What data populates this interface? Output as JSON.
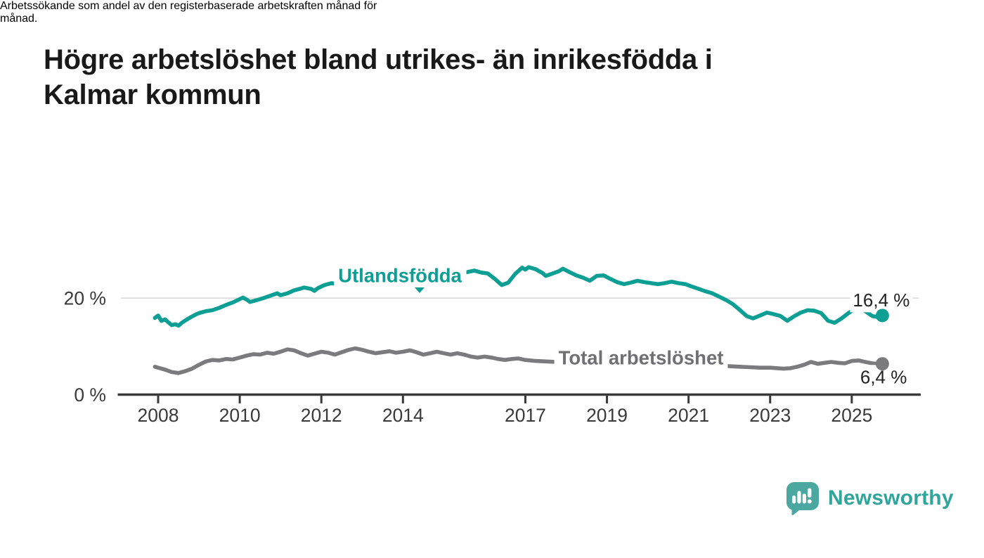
{
  "header": {
    "title_lines": [
      "Högre arbetslöshet bland utrikes- än inrikesfödda i",
      "Kalmar kommun"
    ],
    "subtitle_lines": [
      "Arbetssökande som andel av den registerbaserade arbetskraften månad för",
      "månad."
    ]
  },
  "chart_data": {
    "type": "line",
    "unit": "percent of registered labour force",
    "grid": "y-gridline-at-20-only",
    "legend_position": "inline-labels-on-lines",
    "x_axis": {
      "ticks": [
        2008,
        2010,
        2012,
        2014,
        2017,
        2019,
        2021,
        2023,
        2025
      ],
      "range": [
        2007.9,
        2025.8
      ]
    },
    "y_axis": {
      "ticks": [
        {
          "value": 0,
          "label": "0 %"
        },
        {
          "value": 20,
          "label": "20 %"
        }
      ],
      "range": [
        0,
        29
      ]
    },
    "series": [
      {
        "name": "Utlandsfödda",
        "color": "#0D9F94",
        "end_label": "16,4 %",
        "end_value": 16.4,
        "points": [
          [
            2007.92,
            15.9
          ],
          [
            2008.0,
            16.4
          ],
          [
            2008.08,
            15.3
          ],
          [
            2008.17,
            15.6
          ],
          [
            2008.25,
            15.0
          ],
          [
            2008.33,
            14.4
          ],
          [
            2008.42,
            14.6
          ],
          [
            2008.5,
            14.3
          ],
          [
            2008.58,
            14.9
          ],
          [
            2008.67,
            15.4
          ],
          [
            2008.75,
            15.8
          ],
          [
            2008.83,
            16.2
          ],
          [
            2008.92,
            16.6
          ],
          [
            2009.0,
            16.9
          ],
          [
            2009.17,
            17.3
          ],
          [
            2009.33,
            17.5
          ],
          [
            2009.5,
            18.0
          ],
          [
            2009.67,
            18.6
          ],
          [
            2009.83,
            19.1
          ],
          [
            2010.0,
            19.8
          ],
          [
            2010.08,
            20.1
          ],
          [
            2010.17,
            19.7
          ],
          [
            2010.25,
            19.2
          ],
          [
            2010.42,
            19.6
          ],
          [
            2010.58,
            20.0
          ],
          [
            2010.75,
            20.5
          ],
          [
            2010.92,
            21.0
          ],
          [
            2011.0,
            20.6
          ],
          [
            2011.17,
            21.0
          ],
          [
            2011.33,
            21.6
          ],
          [
            2011.5,
            22.0
          ],
          [
            2011.58,
            22.2
          ],
          [
            2011.75,
            21.9
          ],
          [
            2011.83,
            21.5
          ],
          [
            2011.92,
            22.1
          ],
          [
            2012.08,
            22.7
          ],
          [
            2012.25,
            23.1
          ],
          [
            2012.42,
            22.8
          ],
          [
            2012.58,
            23.0
          ],
          [
            2012.75,
            23.3
          ],
          [
            2012.92,
            23.0
          ],
          [
            2013.08,
            23.2
          ],
          [
            2013.25,
            22.9
          ],
          [
            2013.42,
            22.6
          ],
          [
            2013.58,
            22.4
          ],
          [
            2013.75,
            22.7
          ],
          [
            2013.92,
            22.5
          ],
          [
            2014.08,
            22.6
          ],
          [
            2014.25,
            22.4
          ],
          [
            2014.42,
            22.5
          ],
          [
            2014.58,
            22.9
          ],
          [
            2014.75,
            23.3
          ],
          [
            2014.92,
            23.8
          ],
          [
            2015.08,
            24.5
          ],
          [
            2015.25,
            24.9
          ],
          [
            2015.42,
            25.2
          ],
          [
            2015.58,
            25.4
          ],
          [
            2015.75,
            25.7
          ],
          [
            2015.92,
            25.3
          ],
          [
            2016.08,
            25.1
          ],
          [
            2016.25,
            24.0
          ],
          [
            2016.42,
            22.7
          ],
          [
            2016.58,
            23.2
          ],
          [
            2016.75,
            25.0
          ],
          [
            2016.92,
            26.3
          ],
          [
            2017.0,
            25.9
          ],
          [
            2017.08,
            26.4
          ],
          [
            2017.25,
            26.0
          ],
          [
            2017.42,
            25.2
          ],
          [
            2017.5,
            24.6
          ],
          [
            2017.67,
            25.1
          ],
          [
            2017.83,
            25.6
          ],
          [
            2017.92,
            26.1
          ],
          [
            2018.08,
            25.4
          ],
          [
            2018.25,
            24.7
          ],
          [
            2018.42,
            24.2
          ],
          [
            2018.58,
            23.6
          ],
          [
            2018.75,
            24.6
          ],
          [
            2018.92,
            24.7
          ],
          [
            2019.08,
            24.0
          ],
          [
            2019.25,
            23.3
          ],
          [
            2019.42,
            22.9
          ],
          [
            2019.58,
            23.2
          ],
          [
            2019.75,
            23.6
          ],
          [
            2019.92,
            23.3
          ],
          [
            2020.08,
            23.1
          ],
          [
            2020.25,
            22.9
          ],
          [
            2020.42,
            23.1
          ],
          [
            2020.58,
            23.4
          ],
          [
            2020.75,
            23.1
          ],
          [
            2020.92,
            22.9
          ],
          [
            2021.08,
            22.4
          ],
          [
            2021.25,
            21.9
          ],
          [
            2021.42,
            21.4
          ],
          [
            2021.58,
            21.0
          ],
          [
            2021.75,
            20.3
          ],
          [
            2021.92,
            19.6
          ],
          [
            2022.08,
            18.8
          ],
          [
            2022.25,
            17.6
          ],
          [
            2022.42,
            16.3
          ],
          [
            2022.58,
            15.8
          ],
          [
            2022.75,
            16.4
          ],
          [
            2022.92,
            17.0
          ],
          [
            2023.08,
            16.7
          ],
          [
            2023.25,
            16.3
          ],
          [
            2023.42,
            15.3
          ],
          [
            2023.58,
            16.2
          ],
          [
            2023.75,
            17.0
          ],
          [
            2023.92,
            17.5
          ],
          [
            2024.08,
            17.4
          ],
          [
            2024.25,
            16.9
          ],
          [
            2024.42,
            15.3
          ],
          [
            2024.58,
            14.9
          ],
          [
            2024.75,
            15.8
          ],
          [
            2024.92,
            16.9
          ],
          [
            2025.08,
            17.8
          ],
          [
            2025.17,
            18.0
          ],
          [
            2025.33,
            17.3
          ],
          [
            2025.5,
            16.3
          ],
          [
            2025.67,
            16.0
          ],
          [
            2025.75,
            16.4
          ]
        ]
      },
      {
        "name": "Total arbetslöshet",
        "color": "#7B7B7E",
        "label_color": "#6F6F74",
        "end_label": "6,4 %",
        "end_value": 6.4,
        "points": [
          [
            2007.92,
            5.8
          ],
          [
            2008.0,
            5.6
          ],
          [
            2008.17,
            5.2
          ],
          [
            2008.33,
            4.7
          ],
          [
            2008.5,
            4.5
          ],
          [
            2008.67,
            4.9
          ],
          [
            2008.83,
            5.4
          ],
          [
            2009.0,
            6.2
          ],
          [
            2009.17,
            6.9
          ],
          [
            2009.33,
            7.2
          ],
          [
            2009.5,
            7.1
          ],
          [
            2009.67,
            7.4
          ],
          [
            2009.83,
            7.3
          ],
          [
            2010.0,
            7.7
          ],
          [
            2010.17,
            8.1
          ],
          [
            2010.33,
            8.4
          ],
          [
            2010.5,
            8.3
          ],
          [
            2010.67,
            8.7
          ],
          [
            2010.83,
            8.5
          ],
          [
            2011.0,
            8.9
          ],
          [
            2011.17,
            9.4
          ],
          [
            2011.33,
            9.2
          ],
          [
            2011.5,
            8.6
          ],
          [
            2011.67,
            8.1
          ],
          [
            2011.83,
            8.5
          ],
          [
            2012.0,
            8.9
          ],
          [
            2012.17,
            8.7
          ],
          [
            2012.33,
            8.3
          ],
          [
            2012.5,
            8.8
          ],
          [
            2012.67,
            9.3
          ],
          [
            2012.83,
            9.6
          ],
          [
            2013.0,
            9.3
          ],
          [
            2013.17,
            8.9
          ],
          [
            2013.33,
            8.6
          ],
          [
            2013.5,
            8.8
          ],
          [
            2013.67,
            9.0
          ],
          [
            2013.83,
            8.7
          ],
          [
            2014.0,
            8.9
          ],
          [
            2014.17,
            9.2
          ],
          [
            2014.33,
            8.8
          ],
          [
            2014.5,
            8.3
          ],
          [
            2014.67,
            8.6
          ],
          [
            2014.83,
            8.9
          ],
          [
            2015.0,
            8.6
          ],
          [
            2015.17,
            8.3
          ],
          [
            2015.33,
            8.6
          ],
          [
            2015.5,
            8.3
          ],
          [
            2015.67,
            7.9
          ],
          [
            2015.83,
            7.7
          ],
          [
            2016.0,
            7.9
          ],
          [
            2016.17,
            7.7
          ],
          [
            2016.33,
            7.4
          ],
          [
            2016.5,
            7.2
          ],
          [
            2016.67,
            7.4
          ],
          [
            2016.83,
            7.5
          ],
          [
            2017.0,
            7.2
          ],
          [
            2017.25,
            7.0
          ],
          [
            2017.5,
            6.9
          ],
          [
            2017.75,
            6.8
          ],
          [
            2018.0,
            6.6
          ],
          [
            2018.25,
            6.5
          ],
          [
            2018.5,
            6.4
          ],
          [
            2018.75,
            6.3
          ],
          [
            2019.0,
            6.2
          ],
          [
            2019.33,
            6.2
          ],
          [
            2019.67,
            6.3
          ],
          [
            2020.0,
            6.7
          ],
          [
            2020.25,
            7.0
          ],
          [
            2020.5,
            7.1
          ],
          [
            2020.75,
            6.9
          ],
          [
            2021.0,
            6.7
          ],
          [
            2021.25,
            6.5
          ],
          [
            2021.5,
            6.3
          ],
          [
            2021.75,
            6.1
          ],
          [
            2022.0,
            5.9
          ],
          [
            2022.25,
            5.8
          ],
          [
            2022.5,
            5.7
          ],
          [
            2022.75,
            5.6
          ],
          [
            2023.0,
            5.6
          ],
          [
            2023.17,
            5.5
          ],
          [
            2023.33,
            5.4
          ],
          [
            2023.5,
            5.5
          ],
          [
            2023.67,
            5.8
          ],
          [
            2023.83,
            6.2
          ],
          [
            2024.0,
            6.8
          ],
          [
            2024.17,
            6.4
          ],
          [
            2024.33,
            6.6
          ],
          [
            2024.5,
            6.8
          ],
          [
            2024.67,
            6.6
          ],
          [
            2024.83,
            6.5
          ],
          [
            2025.0,
            7.0
          ],
          [
            2025.17,
            7.1
          ],
          [
            2025.33,
            6.8
          ],
          [
            2025.5,
            6.5
          ],
          [
            2025.67,
            6.4
          ],
          [
            2025.75,
            6.4
          ]
        ]
      }
    ]
  },
  "style": {
    "accent_teal": "#0D9F94",
    "line_gray": "#7B7B7E",
    "axis_color": "#3A3A3A",
    "grid_color": "#DBDBDB",
    "end_label_color": "#232323",
    "brand_teal": "#2FA59C",
    "brand_bubble": "#4BA8A0"
  },
  "footer": {
    "brand": "Newsworthy"
  }
}
